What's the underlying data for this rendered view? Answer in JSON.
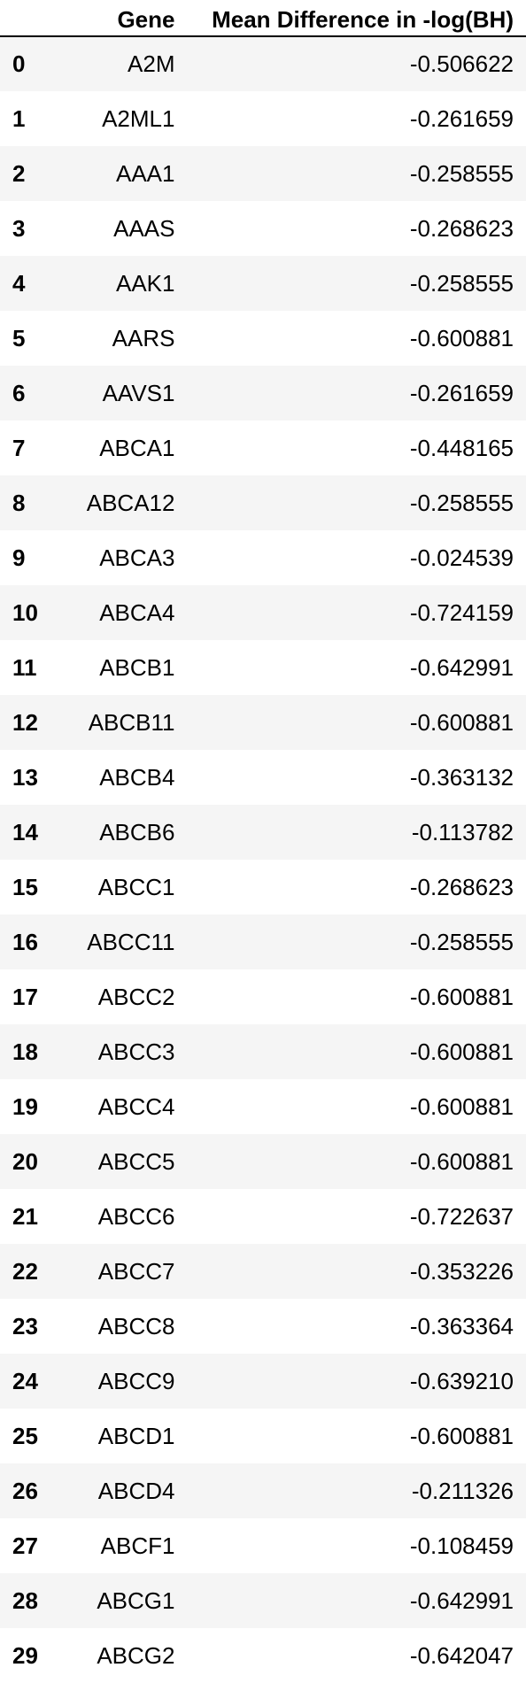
{
  "table": {
    "columns": {
      "index": "",
      "gene": "Gene",
      "value": "Mean Difference in -log(BH)"
    },
    "rows": [
      {
        "index": "0",
        "gene": "A2M",
        "value": "-0.506622"
      },
      {
        "index": "1",
        "gene": "A2ML1",
        "value": "-0.261659"
      },
      {
        "index": "2",
        "gene": "AAA1",
        "value": "-0.258555"
      },
      {
        "index": "3",
        "gene": "AAAS",
        "value": "-0.268623"
      },
      {
        "index": "4",
        "gene": "AAK1",
        "value": "-0.258555"
      },
      {
        "index": "5",
        "gene": "AARS",
        "value": "-0.600881"
      },
      {
        "index": "6",
        "gene": "AAVS1",
        "value": "-0.261659"
      },
      {
        "index": "7",
        "gene": "ABCA1",
        "value": "-0.448165"
      },
      {
        "index": "8",
        "gene": "ABCA12",
        "value": "-0.258555"
      },
      {
        "index": "9",
        "gene": "ABCA3",
        "value": "-0.024539"
      },
      {
        "index": "10",
        "gene": "ABCA4",
        "value": "-0.724159"
      },
      {
        "index": "11",
        "gene": "ABCB1",
        "value": "-0.642991"
      },
      {
        "index": "12",
        "gene": "ABCB11",
        "value": "-0.600881"
      },
      {
        "index": "13",
        "gene": "ABCB4",
        "value": "-0.363132"
      },
      {
        "index": "14",
        "gene": "ABCB6",
        "value": "-0.113782"
      },
      {
        "index": "15",
        "gene": "ABCC1",
        "value": "-0.268623"
      },
      {
        "index": "16",
        "gene": "ABCC11",
        "value": "-0.258555"
      },
      {
        "index": "17",
        "gene": "ABCC2",
        "value": "-0.600881"
      },
      {
        "index": "18",
        "gene": "ABCC3",
        "value": "-0.600881"
      },
      {
        "index": "19",
        "gene": "ABCC4",
        "value": "-0.600881"
      },
      {
        "index": "20",
        "gene": "ABCC5",
        "value": "-0.600881"
      },
      {
        "index": "21",
        "gene": "ABCC6",
        "value": "-0.722637"
      },
      {
        "index": "22",
        "gene": "ABCC7",
        "value": "-0.353226"
      },
      {
        "index": "23",
        "gene": "ABCC8",
        "value": "-0.363364"
      },
      {
        "index": "24",
        "gene": "ABCC9",
        "value": "-0.639210"
      },
      {
        "index": "25",
        "gene": "ABCD1",
        "value": "-0.600881"
      },
      {
        "index": "26",
        "gene": "ABCD4",
        "value": "-0.211326"
      },
      {
        "index": "27",
        "gene": "ABCF1",
        "value": "-0.108459"
      },
      {
        "index": "28",
        "gene": "ABCG1",
        "value": "-0.642991"
      },
      {
        "index": "29",
        "gene": "ABCG2",
        "value": "-0.642047"
      }
    ]
  }
}
